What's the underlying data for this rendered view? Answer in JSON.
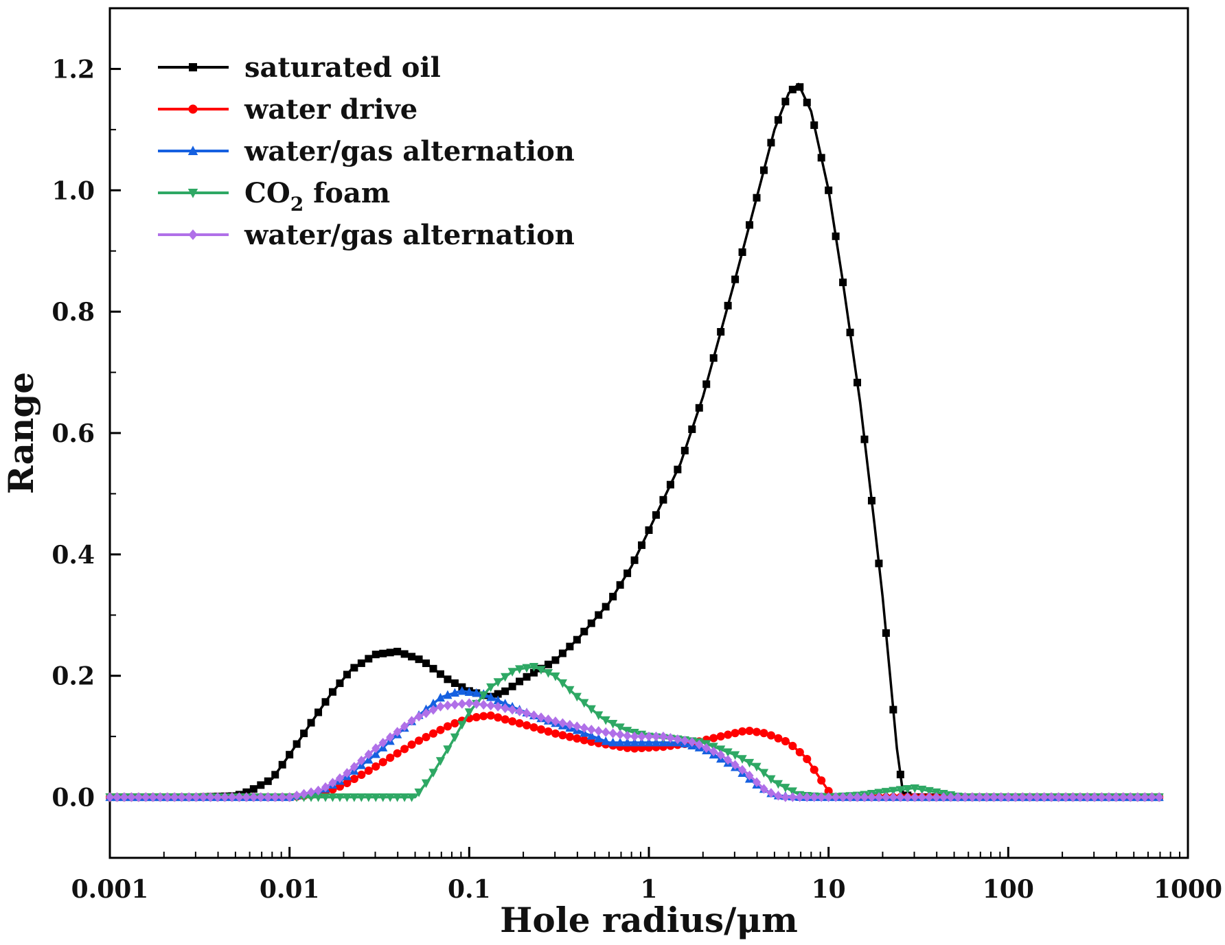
{
  "chart_data": {
    "type": "line",
    "xlabel": "Hole radius/μm",
    "ylabel": "Range",
    "x_scale": "log",
    "xlim": [
      0.001,
      1000
    ],
    "ylim": [
      -0.1,
      1.3
    ],
    "x_ticks": [
      0.001,
      0.01,
      0.1,
      1,
      10,
      100,
      1000
    ],
    "x_tick_labels": [
      "0.001",
      "0.01",
      "0.1",
      "1",
      "10",
      "100",
      "1000"
    ],
    "y_ticks": [
      0.0,
      0.2,
      0.4,
      0.6,
      0.8,
      1.0,
      1.2
    ],
    "y_tick_labels": [
      "0.0",
      "0.2",
      "0.4",
      "0.6",
      "0.8",
      "1.0",
      "1.2"
    ],
    "legend_position": "top-left",
    "series": [
      {
        "name": "saturated oil",
        "name_main": "saturated oil",
        "name_sub": "",
        "name_tail": "",
        "color": "#000000",
        "marker": "square",
        "points": [
          [
            0.001,
            0
          ],
          [
            0.003,
            0
          ],
          [
            0.005,
            0.002
          ],
          [
            0.006,
            0.01
          ],
          [
            0.008,
            0.03
          ],
          [
            0.01,
            0.07
          ],
          [
            0.013,
            0.12
          ],
          [
            0.017,
            0.17
          ],
          [
            0.022,
            0.21
          ],
          [
            0.03,
            0.235
          ],
          [
            0.04,
            0.24
          ],
          [
            0.055,
            0.225
          ],
          [
            0.075,
            0.195
          ],
          [
            0.1,
            0.175
          ],
          [
            0.13,
            0.165
          ],
          [
            0.16,
            0.175
          ],
          [
            0.2,
            0.195
          ],
          [
            0.3,
            0.225
          ],
          [
            0.4,
            0.26
          ],
          [
            0.6,
            0.32
          ],
          [
            0.8,
            0.38
          ],
          [
            1.0,
            0.44
          ],
          [
            1.5,
            0.55
          ],
          [
            2.0,
            0.66
          ],
          [
            3.0,
            0.85
          ],
          [
            4.0,
            0.99
          ],
          [
            5.0,
            1.1
          ],
          [
            6.0,
            1.16
          ],
          [
            6.8,
            1.175
          ],
          [
            8.0,
            1.13
          ],
          [
            10,
            1.0
          ],
          [
            12,
            0.85
          ],
          [
            15,
            0.65
          ],
          [
            18,
            0.45
          ],
          [
            20,
            0.33
          ],
          [
            22,
            0.2
          ],
          [
            24,
            0.08
          ],
          [
            26,
            0.005
          ],
          [
            30,
            0
          ],
          [
            100,
            0
          ],
          [
            700,
            0
          ]
        ]
      },
      {
        "name": "water drive",
        "name_main": "water drive",
        "name_sub": "",
        "name_tail": "",
        "color": "#ff0000",
        "marker": "circle",
        "points": [
          [
            0.001,
            0
          ],
          [
            0.01,
            0
          ],
          [
            0.015,
            0.005
          ],
          [
            0.02,
            0.02
          ],
          [
            0.03,
            0.05
          ],
          [
            0.05,
            0.09
          ],
          [
            0.08,
            0.12
          ],
          [
            0.1,
            0.13
          ],
          [
            0.13,
            0.135
          ],
          [
            0.2,
            0.12
          ],
          [
            0.3,
            0.105
          ],
          [
            0.5,
            0.09
          ],
          [
            0.8,
            0.08
          ],
          [
            1.2,
            0.083
          ],
          [
            1.8,
            0.09
          ],
          [
            2.5,
            0.1
          ],
          [
            3.5,
            0.11
          ],
          [
            4.5,
            0.105
          ],
          [
            6.0,
            0.09
          ],
          [
            7.5,
            0.065
          ],
          [
            9.0,
            0.03
          ],
          [
            10,
            0.01
          ],
          [
            11,
            0
          ],
          [
            100,
            0
          ],
          [
            700,
            0
          ]
        ]
      },
      {
        "name": "water/gas alternation",
        "name_main": "water/gas alternation",
        "name_sub": "",
        "name_tail": "",
        "color": "#1560e0",
        "marker": "triangle-up",
        "points": [
          [
            0.001,
            0
          ],
          [
            0.01,
            0
          ],
          [
            0.015,
            0.01
          ],
          [
            0.02,
            0.03
          ],
          [
            0.03,
            0.07
          ],
          [
            0.05,
            0.13
          ],
          [
            0.07,
            0.165
          ],
          [
            0.09,
            0.175
          ],
          [
            0.12,
            0.17
          ],
          [
            0.17,
            0.15
          ],
          [
            0.25,
            0.13
          ],
          [
            0.4,
            0.11
          ],
          [
            0.6,
            0.09
          ],
          [
            1.0,
            0.09
          ],
          [
            1.5,
            0.09
          ],
          [
            2.0,
            0.08
          ],
          [
            3.0,
            0.05
          ],
          [
            4.0,
            0.02
          ],
          [
            5.0,
            0.003
          ],
          [
            7,
            0
          ],
          [
            100,
            0
          ],
          [
            700,
            0
          ]
        ]
      },
      {
        "name": "CO2 foam",
        "name_main": "CO",
        "name_sub": "2",
        "name_tail": " foam",
        "color": "#2ea864",
        "marker": "triangle-down",
        "points": [
          [
            0.001,
            0
          ],
          [
            0.01,
            0
          ],
          [
            0.05,
            0
          ],
          [
            0.06,
            0.03
          ],
          [
            0.08,
            0.09
          ],
          [
            0.1,
            0.14
          ],
          [
            0.13,
            0.18
          ],
          [
            0.18,
            0.21
          ],
          [
            0.23,
            0.215
          ],
          [
            0.3,
            0.2
          ],
          [
            0.4,
            0.165
          ],
          [
            0.55,
            0.13
          ],
          [
            0.75,
            0.11
          ],
          [
            1.0,
            0.1
          ],
          [
            1.5,
            0.095
          ],
          [
            2.0,
            0.09
          ],
          [
            3.0,
            0.07
          ],
          [
            4.0,
            0.05
          ],
          [
            5.0,
            0.025
          ],
          [
            7,
            0.003
          ],
          [
            10,
            0
          ],
          [
            15,
            0.003
          ],
          [
            22,
            0.01
          ],
          [
            30,
            0.015
          ],
          [
            40,
            0.008
          ],
          [
            55,
            0
          ],
          [
            100,
            0
          ],
          [
            700,
            0
          ]
        ]
      },
      {
        "name": "water/gas alternation",
        "name_main": "water/gas alternation",
        "name_sub": "",
        "name_tail": "",
        "color": "#b070e8",
        "marker": "diamond",
        "points": [
          [
            0.001,
            0
          ],
          [
            0.01,
            0
          ],
          [
            0.015,
            0.012
          ],
          [
            0.02,
            0.035
          ],
          [
            0.03,
            0.08
          ],
          [
            0.05,
            0.13
          ],
          [
            0.07,
            0.15
          ],
          [
            0.1,
            0.155
          ],
          [
            0.14,
            0.15
          ],
          [
            0.2,
            0.14
          ],
          [
            0.3,
            0.125
          ],
          [
            0.5,
            0.11
          ],
          [
            0.8,
            0.1
          ],
          [
            1.2,
            0.1
          ],
          [
            1.8,
            0.09
          ],
          [
            2.5,
            0.07
          ],
          [
            3.5,
            0.04
          ],
          [
            4.5,
            0.01
          ],
          [
            5.5,
            0
          ],
          [
            100,
            0
          ],
          [
            700,
            0
          ]
        ]
      }
    ]
  }
}
